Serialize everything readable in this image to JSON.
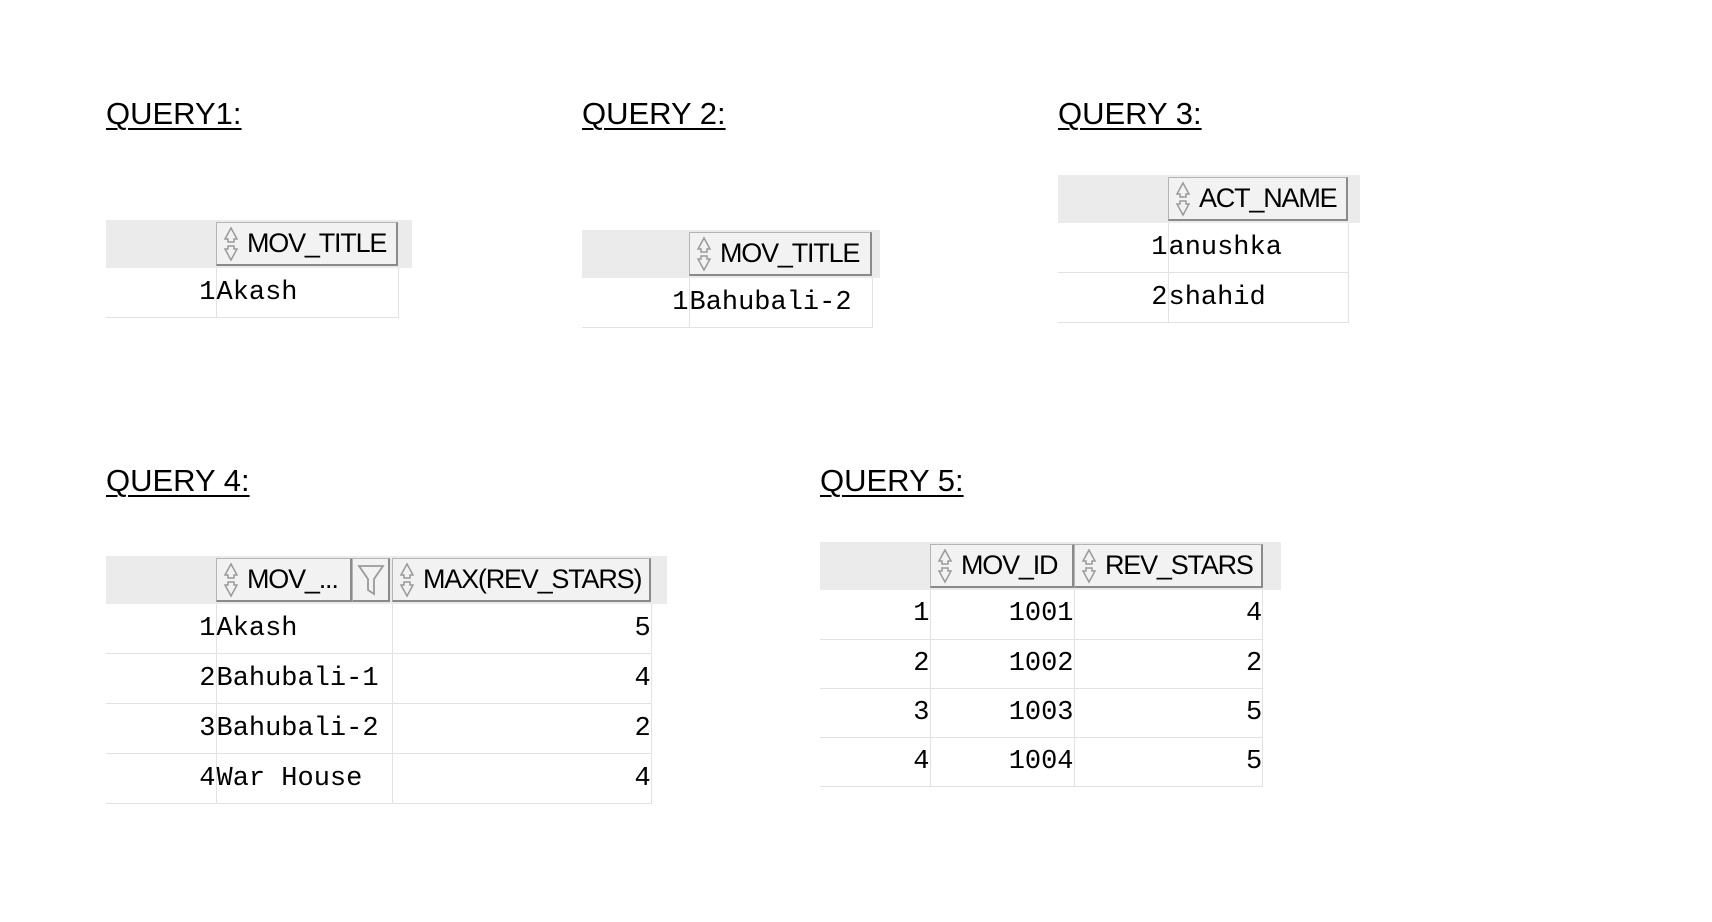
{
  "queries": [
    {
      "title": "QUERY1:",
      "columns": [
        "MOV_TITLE"
      ],
      "rows": [
        [
          "1",
          "Akash"
        ]
      ]
    },
    {
      "title": "QUERY 2:",
      "columns": [
        "MOV_TITLE"
      ],
      "rows": [
        [
          "1",
          "Bahubali-2"
        ]
      ]
    },
    {
      "title": "QUERY 3:",
      "columns": [
        "ACT_NAME"
      ],
      "rows": [
        [
          "1",
          "anushka"
        ],
        [
          "2",
          "shahid"
        ]
      ]
    },
    {
      "title": "QUERY 4:",
      "columns": [
        "MOV_...",
        "MAX(REV_STARS)"
      ],
      "rows": [
        [
          "1",
          "Akash",
          "5"
        ],
        [
          "2",
          "Bahubali-1",
          "4"
        ],
        [
          "3",
          "Bahubali-2",
          "2"
        ],
        [
          "4",
          "War House",
          "4"
        ]
      ]
    },
    {
      "title": "QUERY 5:",
      "columns": [
        "MOV_ID",
        "REV_STARS"
      ],
      "rows": [
        [
          "1",
          "1001",
          "4"
        ],
        [
          "2",
          "1002",
          "2"
        ],
        [
          "3",
          "1003",
          "5"
        ],
        [
          "4",
          "1004",
          "5"
        ]
      ]
    }
  ],
  "icons": {
    "sort": "sort-arrows-icon",
    "filter": "filter-funnel-icon"
  },
  "colors": {
    "header_bg": "#ebebeb",
    "grid_line": "#e2e2e2"
  }
}
